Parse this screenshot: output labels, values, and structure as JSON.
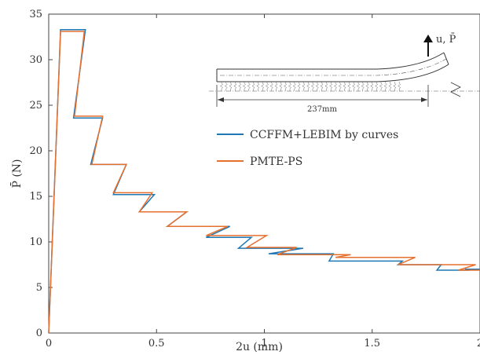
{
  "chart_data": {
    "type": "line",
    "xlabel": "2u (mm)",
    "ylabel": "P̄ (N)",
    "xlim": [
      0,
      2
    ],
    "ylim": [
      0,
      35
    ],
    "xticks": [
      0,
      0.5,
      1,
      1.5,
      2
    ],
    "xtick_labels": [
      "0",
      "0.5",
      "1",
      "1.5",
      "2"
    ],
    "yticks": [
      0,
      5,
      10,
      15,
      20,
      25,
      30,
      35
    ],
    "ytick_labels": [
      "0",
      "5",
      "10",
      "15",
      "20",
      "25",
      "30",
      "35"
    ],
    "grid": false,
    "legend": "upper-right",
    "series": [
      {
        "name": "CCFFM+LEBIM by curves",
        "color": "#1f77b4",
        "x": [
          0,
          0.055,
          0.17,
          0.115,
          0.25,
          0.195,
          0.36,
          0.3,
          0.49,
          0.42,
          0.64,
          0.55,
          0.84,
          0.73,
          0.94,
          0.88,
          1.18,
          1.02,
          1.32,
          1.3,
          1.64,
          1.62,
          1.82,
          1.8,
          1.95,
          1.93,
          2.0
        ],
        "y": [
          0,
          33.3,
          33.3,
          23.6,
          23.6,
          18.5,
          18.5,
          15.2,
          15.2,
          13.3,
          13.3,
          11.7,
          11.7,
          10.5,
          10.5,
          9.3,
          9.3,
          8.7,
          8.7,
          7.9,
          7.9,
          7.5,
          7.5,
          6.9,
          6.9,
          7.0,
          7.0
        ]
      },
      {
        "name": "PMTE-PS",
        "color": "#e6702e",
        "x": [
          0,
          0.055,
          0.165,
          0.12,
          0.25,
          0.2,
          0.36,
          0.3,
          0.48,
          0.42,
          0.64,
          0.55,
          0.83,
          0.73,
          1.01,
          0.92,
          1.15,
          1.06,
          1.4,
          1.33,
          1.7,
          1.62,
          1.86,
          1.78,
          1.98,
          1.9,
          2.0
        ],
        "y": [
          0,
          33.1,
          33.1,
          23.8,
          23.8,
          18.5,
          18.5,
          15.4,
          15.4,
          13.3,
          13.3,
          11.7,
          11.7,
          10.7,
          10.7,
          9.4,
          9.4,
          8.6,
          8.6,
          8.3,
          8.3,
          7.5,
          7.5,
          7.5,
          7.5,
          6.9,
          6.9
        ]
      }
    ],
    "inset": {
      "dimension_label": "237mm",
      "load_label": "u, P̄"
    }
  }
}
